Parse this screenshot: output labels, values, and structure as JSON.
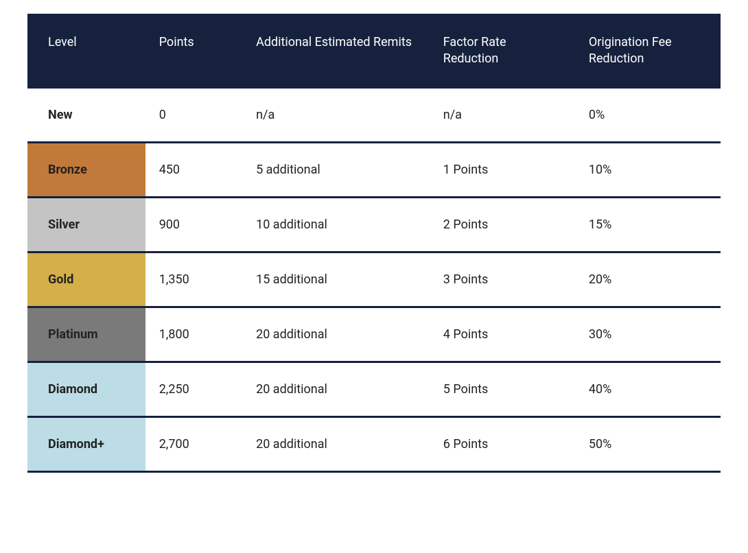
{
  "table": {
    "type": "table",
    "header_bg": "#16213e",
    "header_text_color": "#ffffff",
    "border_color": "#16213e",
    "border_width": 3,
    "columns": [
      {
        "key": "level",
        "label": "Level",
        "width_pct": 17
      },
      {
        "key": "points",
        "label": "Points",
        "width_pct": 14
      },
      {
        "key": "remits",
        "label": "Additional Estimated Remits",
        "width_pct": 27
      },
      {
        "key": "factor",
        "label": "Factor Rate Reduction",
        "width_pct": 21
      },
      {
        "key": "fee",
        "label": "Origination Fee Reduction",
        "width_pct": 21
      }
    ],
    "rows": [
      {
        "level": "New",
        "level_bg": "#ffffff",
        "level_text_color": "#222222",
        "points": "0",
        "remits": "n/a",
        "factor": "n/a",
        "fee": "0%"
      },
      {
        "level": "Bronze",
        "level_bg": "#c17a3a",
        "level_text_color": "#222222",
        "points": "450",
        "remits": "5  additional",
        "factor": "1 Points",
        "fee": "10%"
      },
      {
        "level": "Silver",
        "level_bg": "#c4c4c4",
        "level_text_color": "#222222",
        "points": "900",
        "remits": "10 additional",
        "factor": "2 Points",
        "fee": "15%"
      },
      {
        "level": "Gold",
        "level_bg": "#d4af4a",
        "level_text_color": "#222222",
        "points": "1,350",
        "remits": "15 additional",
        "factor": "3 Points",
        "fee": "20%"
      },
      {
        "level": "Platinum",
        "level_bg": "#7a7a7a",
        "level_text_color": "#222222",
        "points": "1,800",
        "remits": "20 additional",
        "factor": "4 Points",
        "fee": "30%"
      },
      {
        "level": "Diamond",
        "level_bg": "#bcdce6",
        "level_text_color": "#222222",
        "points": "2,250",
        "remits": "20 additional",
        "factor": "5 Points",
        "fee": "40%"
      },
      {
        "level": "Diamond+",
        "level_bg": "#bcdce6",
        "level_text_color": "#222222",
        "points": "2,700",
        "remits": "20 additional",
        "factor": "6 Points",
        "fee": "50%"
      }
    ]
  }
}
